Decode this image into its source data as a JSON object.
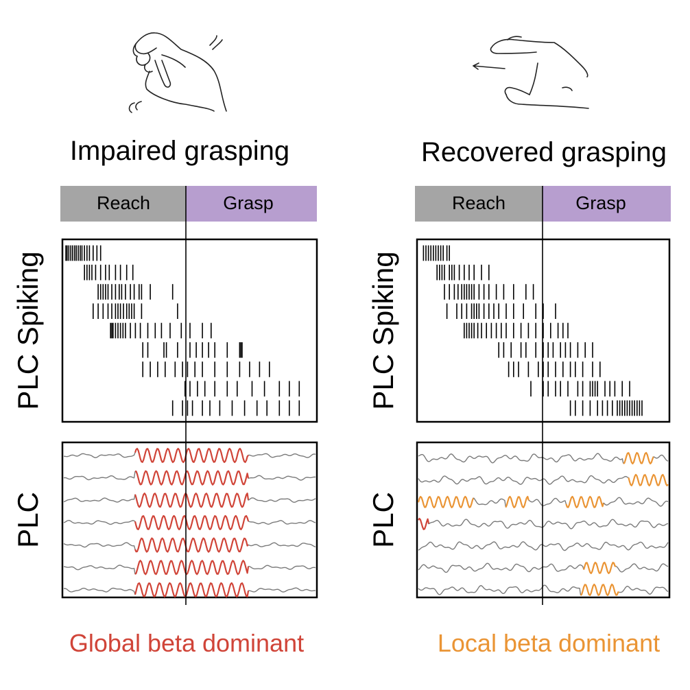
{
  "colors": {
    "reach_bg": "#a5a5a5",
    "grasp_bg": "#b79ecf",
    "global_beta": "#d04438",
    "local_beta": "#ea9434",
    "baseline_trace": "#7a7a7a",
    "ink": "#000000"
  },
  "panels": [
    {
      "id": "impaired",
      "hand_icon": "trembling-hand-icon",
      "title": "Impaired grasping",
      "phase_labels": {
        "reach": "Reach",
        "grasp": "Grasp"
      },
      "spiking_label": "PLC Spiking",
      "lfp_label": "PLC",
      "caption": "Global beta dominant",
      "caption_color_key": "global_beta",
      "raster": [
        [
          0.0,
          0.005,
          0.012,
          0.02,
          0.027,
          0.035,
          0.042,
          0.05,
          0.058,
          0.065,
          0.075,
          0.085,
          0.095,
          0.11,
          0.125,
          0.14
        ],
        [
          0.075,
          0.085,
          0.095,
          0.105,
          0.12,
          0.14,
          0.16,
          0.175,
          0.2,
          0.22,
          0.245,
          0.27
        ],
        [
          0.13,
          0.14,
          0.15,
          0.16,
          0.17,
          0.185,
          0.2,
          0.215,
          0.225,
          0.24,
          0.26,
          0.275,
          0.295,
          0.305,
          0.34,
          0.43
        ],
        [
          0.11,
          0.13,
          0.15,
          0.17,
          0.185,
          0.2,
          0.21,
          0.22,
          0.232,
          0.245,
          0.255,
          0.265,
          0.275,
          0.305,
          0.45
        ],
        [
          0.18,
          0.185,
          0.19,
          0.2,
          0.21,
          0.22,
          0.23,
          0.24,
          0.26,
          0.28,
          0.3,
          0.33,
          0.36,
          0.385,
          0.42,
          0.465,
          0.5,
          0.55,
          0.585
        ],
        [
          0.31,
          0.33,
          0.395,
          0.405,
          0.45,
          0.5,
          0.525,
          0.55,
          0.575,
          0.6,
          0.65,
          0.7,
          0.705,
          0.71
        ],
        [
          0.31,
          0.34,
          0.37,
          0.4,
          0.44,
          0.47,
          0.49,
          0.52,
          0.55,
          0.6,
          0.65,
          0.7,
          0.74,
          0.78,
          0.82
        ],
        [
          0.48,
          0.5,
          0.53,
          0.56,
          0.6,
          0.65,
          0.69,
          0.75,
          0.8,
          0.86,
          0.9,
          0.94
        ],
        [
          0.43,
          0.47,
          0.49,
          0.51,
          0.55,
          0.58,
          0.62,
          0.67,
          0.72,
          0.77,
          0.81,
          0.86,
          0.9,
          0.94
        ]
      ],
      "lfp": [
        {
          "bursts": [
            [
              0.28,
              0.73
            ]
          ],
          "burst_color_key": "global_beta"
        },
        {
          "bursts": [
            [
              0.28,
              0.73
            ]
          ],
          "burst_color_key": "global_beta"
        },
        {
          "bursts": [
            [
              0.28,
              0.73
            ]
          ],
          "burst_color_key": "global_beta"
        },
        {
          "bursts": [
            [
              0.28,
              0.73
            ]
          ],
          "burst_color_key": "global_beta"
        },
        {
          "bursts": [
            [
              0.28,
              0.73
            ]
          ],
          "burst_color_key": "global_beta"
        },
        {
          "bursts": [
            [
              0.28,
              0.73
            ]
          ],
          "burst_color_key": "global_beta"
        },
        {
          "bursts": [
            [
              0.28,
              0.73
            ]
          ],
          "burst_color_key": "global_beta"
        }
      ]
    },
    {
      "id": "recovered",
      "hand_icon": "grasping-hand-icon",
      "title": "Recovered grasping",
      "phase_labels": {
        "reach": "Reach",
        "grasp": "Grasp"
      },
      "spiking_label": "PLC Spiking",
      "lfp_label": "PLC",
      "caption": "Local beta dominant",
      "caption_color_key": "local_beta",
      "raster": [
        [
          0.015,
          0.025,
          0.035,
          0.045,
          0.055,
          0.065,
          0.075,
          0.085,
          0.095,
          0.11,
          0.12
        ],
        [
          0.07,
          0.08,
          0.09,
          0.1,
          0.12,
          0.13,
          0.14,
          0.16,
          0.18,
          0.2,
          0.22,
          0.25,
          0.28
        ],
        [
          0.1,
          0.12,
          0.14,
          0.155,
          0.17,
          0.18,
          0.19,
          0.2,
          0.21,
          0.22,
          0.24,
          0.26,
          0.28,
          0.31,
          0.34,
          0.38,
          0.43,
          0.46
        ],
        [
          0.11,
          0.15,
          0.17,
          0.19,
          0.21,
          0.22,
          0.23,
          0.24,
          0.26,
          0.28,
          0.3,
          0.32,
          0.35,
          0.38,
          0.42,
          0.47,
          0.5,
          0.55
        ],
        [
          0.18,
          0.19,
          0.2,
          0.21,
          0.22,
          0.235,
          0.25,
          0.27,
          0.29,
          0.31,
          0.33,
          0.35,
          0.38,
          0.41,
          0.44,
          0.47,
          0.5,
          0.53,
          0.56,
          0.58,
          0.6
        ],
        [
          0.32,
          0.34,
          0.37,
          0.41,
          0.43,
          0.47,
          0.5,
          0.52,
          0.54,
          0.57,
          0.59,
          0.61,
          0.64,
          0.67,
          0.7
        ],
        [
          0.36,
          0.38,
          0.4,
          0.44,
          0.48,
          0.5,
          0.52,
          0.55,
          0.58,
          0.61,
          0.63,
          0.66,
          0.7,
          0.73
        ],
        [
          0.45,
          0.5,
          0.52,
          0.55,
          0.57,
          0.6,
          0.64,
          0.66,
          0.69,
          0.7,
          0.71,
          0.72,
          0.75,
          0.77,
          0.79,
          0.82,
          0.85
        ],
        [
          0.61,
          0.63,
          0.66,
          0.69,
          0.72,
          0.74,
          0.76,
          0.78,
          0.8,
          0.81,
          0.82,
          0.83,
          0.84,
          0.85,
          0.86,
          0.87,
          0.88,
          0.89,
          0.9
        ]
      ],
      "lfp": [
        {
          "bursts": [
            [
              0.82,
              0.94
            ]
          ],
          "burst_color_key": "local_beta"
        },
        {
          "bursts": [
            [
              0.84,
              1.0
            ]
          ],
          "burst_color_key": "local_beta"
        },
        {
          "bursts": [
            [
              0.0,
              0.22
            ],
            [
              0.35,
              0.44
            ],
            [
              0.59,
              0.74
            ]
          ],
          "burst_color_key": "local_beta"
        },
        {
          "bursts": [
            [
              0.0,
              0.04
            ]
          ],
          "burst_color_key": "global_beta"
        },
        {
          "bursts": [],
          "burst_color_key": "local_beta"
        },
        {
          "bursts": [
            [
              0.66,
              0.79
            ]
          ],
          "burst_color_key": "local_beta"
        },
        {
          "bursts": [
            [
              0.65,
              0.8
            ]
          ],
          "burst_color_key": "local_beta"
        }
      ]
    }
  ]
}
